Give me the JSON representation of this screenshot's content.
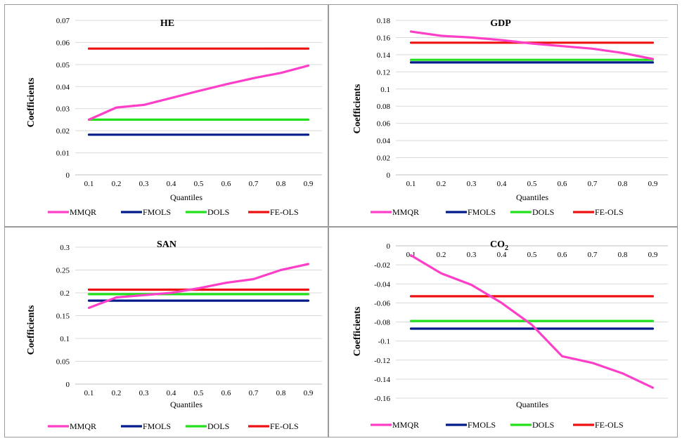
{
  "chart_data": [
    {
      "type": "line",
      "title": "HE",
      "xlabel": "Quantiles",
      "ylabel": "Coefficients",
      "x": [
        0.1,
        0.2,
        0.3,
        0.4,
        0.5,
        0.6,
        0.7,
        0.8,
        0.9
      ],
      "y_ticks": [
        "0",
        "0.01",
        "0.02",
        "0.03",
        "0.04",
        "0.05",
        "0.06",
        "0.07"
      ],
      "ylim": [
        0,
        0.07
      ],
      "grid": true,
      "legend_position": "bottom",
      "series": [
        {
          "name": "MMQR",
          "color": "#ff3fc8",
          "values": [
            0.025,
            0.0305,
            0.0317,
            0.0348,
            0.038,
            0.041,
            0.0438,
            0.0462,
            0.0495
          ]
        },
        {
          "name": "FMOLS",
          "color": "#001b8c",
          "values": [
            0.0182,
            0.0182,
            0.0182,
            0.0182,
            0.0182,
            0.0182,
            0.0182,
            0.0182,
            0.0182
          ]
        },
        {
          "name": "DOLS",
          "color": "#22e01b",
          "values": [
            0.025,
            0.025,
            0.025,
            0.025,
            0.025,
            0.025,
            0.025,
            0.025,
            0.025
          ]
        },
        {
          "name": "FE-OLS",
          "color": "#ee1111",
          "values": [
            0.0572,
            0.0572,
            0.0572,
            0.0572,
            0.0572,
            0.0572,
            0.0572,
            0.0572,
            0.0572
          ]
        }
      ]
    },
    {
      "type": "line",
      "title": "GDP",
      "xlabel": "Quantiles",
      "ylabel": "Coefficients",
      "x": [
        0.1,
        0.2,
        0.3,
        0.4,
        0.5,
        0.6,
        0.7,
        0.8,
        0.9
      ],
      "y_ticks": [
        "0",
        "0.02",
        "0.04",
        "0.06",
        "0.08",
        "0.1",
        "0.12",
        "0.14",
        "0.16",
        "0.18"
      ],
      "ylim": [
        0,
        0.18
      ],
      "grid": true,
      "legend_position": "bottom",
      "series": [
        {
          "name": "MMQR",
          "color": "#ff3fc8",
          "values": [
            0.167,
            0.162,
            0.16,
            0.157,
            0.153,
            0.15,
            0.147,
            0.142,
            0.135
          ]
        },
        {
          "name": "FMOLS",
          "color": "#001b8c",
          "values": [
            0.131,
            0.131,
            0.131,
            0.131,
            0.131,
            0.131,
            0.131,
            0.131,
            0.131
          ]
        },
        {
          "name": "DOLS",
          "color": "#22e01b",
          "values": [
            0.134,
            0.134,
            0.134,
            0.134,
            0.134,
            0.134,
            0.134,
            0.134,
            0.134
          ]
        },
        {
          "name": "FE-OLS",
          "color": "#ee1111",
          "values": [
            0.154,
            0.154,
            0.154,
            0.154,
            0.154,
            0.154,
            0.154,
            0.154,
            0.154
          ]
        }
      ]
    },
    {
      "type": "line",
      "title": "SAN",
      "xlabel": "Quantiles",
      "ylabel": "Coefficients",
      "x": [
        0.1,
        0.2,
        0.3,
        0.4,
        0.5,
        0.6,
        0.7,
        0.8,
        0.9
      ],
      "y_ticks": [
        "0",
        "0.05",
        "0.1",
        "0.15",
        "0.2",
        "0.25",
        "0.3"
      ],
      "ylim": [
        0,
        0.3
      ],
      "grid": true,
      "legend_position": "bottom",
      "series": [
        {
          "name": "MMQR",
          "color": "#ff3fc8",
          "values": [
            0.167,
            0.19,
            0.195,
            0.2,
            0.21,
            0.222,
            0.23,
            0.25,
            0.263
          ]
        },
        {
          "name": "FMOLS",
          "color": "#001b8c",
          "values": [
            0.183,
            0.183,
            0.183,
            0.183,
            0.183,
            0.183,
            0.183,
            0.183,
            0.183
          ]
        },
        {
          "name": "DOLS",
          "color": "#22e01b",
          "values": [
            0.197,
            0.197,
            0.197,
            0.197,
            0.197,
            0.197,
            0.197,
            0.197,
            0.197
          ]
        },
        {
          "name": "FE-OLS",
          "color": "#ee1111",
          "values": [
            0.207,
            0.207,
            0.207,
            0.207,
            0.207,
            0.207,
            0.207,
            0.207,
            0.207
          ]
        }
      ]
    },
    {
      "type": "line",
      "title": "CO",
      "title_subscript": "2",
      "xlabel": "Quantiles",
      "ylabel": "Coefficients",
      "x_axis_at_top": true,
      "x": [
        0.1,
        0.2,
        0.3,
        0.4,
        0.5,
        0.6,
        0.7,
        0.8,
        0.9
      ],
      "y_ticks": [
        "0",
        "-0.02",
        "-0.04",
        "-0.06",
        "-0.08",
        "-0.1",
        "-0.12",
        "-0.14",
        "-0.16"
      ],
      "ylim": [
        -0.16,
        0
      ],
      "grid": true,
      "legend_position": "bottom",
      "series": [
        {
          "name": "MMQR",
          "color": "#ff3fc8",
          "values": [
            -0.01,
            -0.029,
            -0.041,
            -0.06,
            -0.083,
            -0.116,
            -0.123,
            -0.134,
            -0.149
          ]
        },
        {
          "name": "FMOLS",
          "color": "#001b8c",
          "values": [
            -0.087,
            -0.087,
            -0.087,
            -0.087,
            -0.087,
            -0.087,
            -0.087,
            -0.087,
            -0.087
          ]
        },
        {
          "name": "DOLS",
          "color": "#22e01b",
          "values": [
            -0.079,
            -0.079,
            -0.079,
            -0.079,
            -0.079,
            -0.079,
            -0.079,
            -0.079,
            -0.079
          ]
        },
        {
          "name": "FE-OLS",
          "color": "#ee1111",
          "values": [
            -0.053,
            -0.053,
            -0.053,
            -0.053,
            -0.053,
            -0.053,
            -0.053,
            -0.053,
            -0.053
          ]
        }
      ]
    }
  ]
}
